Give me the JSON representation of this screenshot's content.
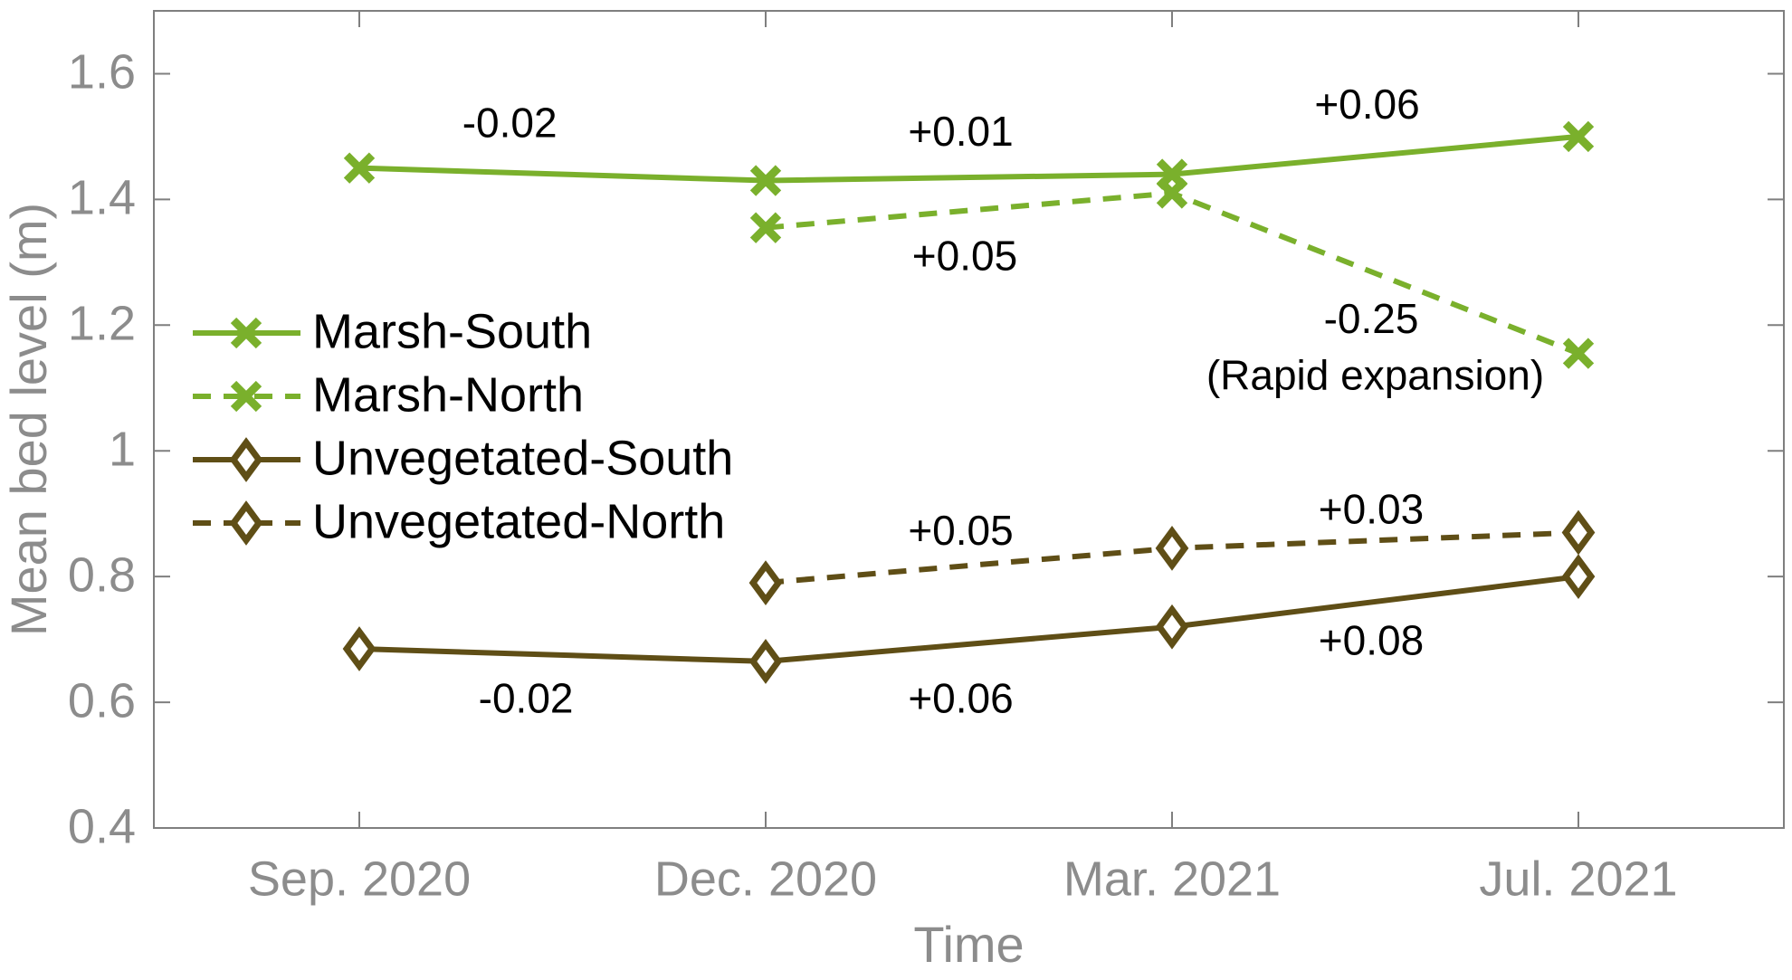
{
  "figure": {
    "background": "#ffffff",
    "axis_line_color": "#7f7f7f",
    "axis_text_color": "#8c8c8c",
    "annotation_text_color": "#000000",
    "legend_text_color": "#000000"
  },
  "chart_data": {
    "type": "line",
    "title": "",
    "xlabel": "Time",
    "ylabel": "Mean bed level (m)",
    "categories": [
      "Sep. 2020",
      "Dec. 2020",
      "Mar. 2021",
      "Jul. 2021"
    ],
    "ylim": [
      0.4,
      1.7
    ],
    "yticks": [
      0.4,
      0.6,
      0.8,
      1,
      1.2,
      1.4,
      1.6
    ],
    "ytick_labels": [
      "0.4",
      "0.6",
      "0.8",
      "1",
      "1.2",
      "1.4",
      "1.6"
    ],
    "grid": false,
    "legend_position": "inside-upper-left",
    "series": [
      {
        "name": "Marsh-South",
        "color": "#7ab02c",
        "style": "solid",
        "marker": "x",
        "values": [
          1.45,
          1.43,
          1.44,
          1.5
        ]
      },
      {
        "name": "Marsh-North",
        "color": "#7ab02c",
        "style": "dashed",
        "marker": "x",
        "values": [
          null,
          1.355,
          1.41,
          1.155
        ]
      },
      {
        "name": "Unvegetated-South",
        "color": "#5f4e16",
        "style": "solid",
        "marker": "diamond",
        "values": [
          0.685,
          0.665,
          0.72,
          0.8
        ]
      },
      {
        "name": "Unvegetated-North",
        "color": "#5f4e16",
        "style": "dashed",
        "marker": "diamond",
        "values": [
          null,
          0.79,
          0.845,
          0.87
        ]
      }
    ],
    "annotations": [
      {
        "text": "-0.02",
        "x": 0.37,
        "y": 1.517
      },
      {
        "text": "+0.01",
        "x": 1.48,
        "y": 1.503
      },
      {
        "text": "+0.06",
        "x": 2.48,
        "y": 1.546
      },
      {
        "text": "+0.05",
        "x": 1.49,
        "y": 1.305
      },
      {
        "text": "-0.25",
        "x": 2.49,
        "y": 1.205
      },
      {
        "text": "(Rapid expansion)",
        "x": 2.5,
        "y": 1.115
      },
      {
        "text": "+0.05",
        "x": 1.48,
        "y": 0.868
      },
      {
        "text": "+0.03",
        "x": 2.49,
        "y": 0.902
      },
      {
        "text": "-0.02",
        "x": 0.41,
        "y": 0.601
      },
      {
        "text": "+0.06",
        "x": 1.48,
        "y": 0.601
      },
      {
        "text": "+0.08",
        "x": 2.49,
        "y": 0.693
      }
    ]
  }
}
